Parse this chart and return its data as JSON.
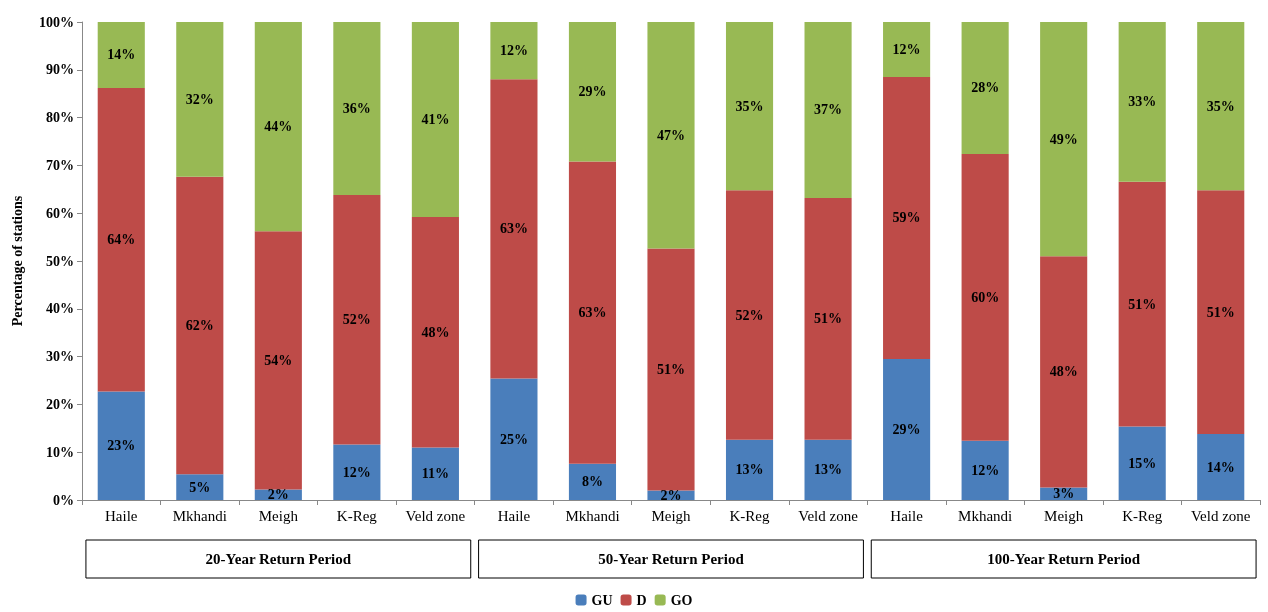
{
  "chart_data": {
    "type": "bar",
    "stacked": true,
    "ylabel": "Percentage of stations",
    "categories": [
      "Haile",
      "Mkhandi",
      "Meigh",
      "K-Reg",
      "Veld zone",
      "Haile",
      "Mkhandi",
      "Meigh",
      "K-Reg",
      "Veld zone",
      "Haile",
      "Mkhandi",
      "Meigh",
      "K-Reg",
      "Veld zone"
    ],
    "series": [
      {
        "name": "GU",
        "color": "#4a7ebb",
        "values": [
          22.7,
          5.4,
          2.2,
          11.6,
          11.0,
          25.4,
          7.6,
          2.0,
          12.6,
          12.6,
          29.5,
          12.4,
          2.6,
          15.4,
          13.8
        ],
        "value_labels": [
          "23%",
          "5%",
          "2%",
          "12%",
          "11%",
          "25%",
          "8%",
          "2%",
          "13%",
          "13%",
          "29%",
          "12%",
          "3%",
          "15%",
          "14%"
        ]
      },
      {
        "name": "D",
        "color": "#be4b48",
        "values": [
          63.5,
          62.2,
          54.0,
          52.2,
          48.2,
          62.6,
          63.2,
          50.6,
          52.2,
          50.6,
          59.0,
          60.0,
          48.4,
          51.2,
          51.0
        ],
        "value_labels": [
          "64%",
          "62%",
          "54%",
          "52%",
          "48%",
          "63%",
          "63%",
          "51%",
          "52%",
          "51%",
          "59%",
          "60%",
          "48%",
          "51%",
          "51%"
        ]
      },
      {
        "name": "GO",
        "color": "#98b954",
        "values": [
          13.8,
          32.4,
          43.8,
          36.2,
          40.8,
          12.0,
          29.2,
          47.4,
          35.2,
          36.8,
          11.5,
          27.6,
          49.0,
          33.4,
          35.2
        ],
        "value_labels": [
          "14%",
          "32%",
          "44%",
          "36%",
          "41%",
          "12%",
          "29%",
          "47%",
          "35%",
          "37%",
          "12%",
          "28%",
          "49%",
          "33%",
          "35%"
        ]
      }
    ],
    "annotations": [
      "20-Year Return Period",
      "50-Year Return Period",
      "100-Year Return Period"
    ],
    "ylim": [
      0,
      100
    ],
    "yticks": [
      {
        "value": 0,
        "label": "0%"
      },
      {
        "value": 10,
        "label": "10%"
      },
      {
        "value": 20,
        "label": "20%"
      },
      {
        "value": 30,
        "label": "30%"
      },
      {
        "value": 40,
        "label": "40%"
      },
      {
        "value": 50,
        "label": "50%"
      },
      {
        "value": 60,
        "label": "60%"
      },
      {
        "value": 70,
        "label": "70%"
      },
      {
        "value": 80,
        "label": "80%"
      },
      {
        "value": 90,
        "label": "90%"
      },
      {
        "value": 100,
        "label": "100%"
      }
    ],
    "grid": false,
    "legend": "bottom"
  }
}
